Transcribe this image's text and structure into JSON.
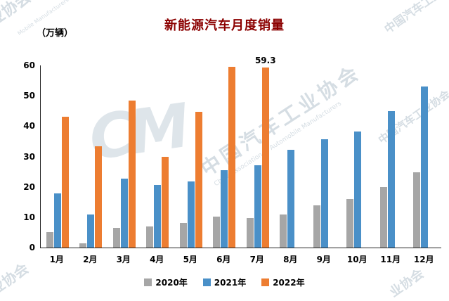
{
  "title": "新能源汽车月度销量",
  "unit_label": "（万辆）",
  "watermark": {
    "cn": "中国汽车工业协会",
    "en": "China Association of Automobile Manufacturers",
    "en_partial": "Mobile Manufacturers",
    "logo": "CM",
    "corner": "业协会"
  },
  "chart_data": {
    "type": "bar",
    "categories": [
      "1月",
      "2月",
      "3月",
      "4月",
      "5月",
      "6月",
      "7月",
      "8月",
      "9月",
      "10月",
      "11月",
      "12月"
    ],
    "series": [
      {
        "name": "2020年",
        "color": "#a6a6a6",
        "values": [
          5,
          1.5,
          6.5,
          7,
          8,
          10.2,
          9.8,
          10.9,
          13.8,
          16,
          20,
          24.8
        ]
      },
      {
        "name": "2021年",
        "color": "#4a90c8",
        "values": [
          17.9,
          11,
          22.6,
          20.6,
          21.7,
          25.6,
          27.1,
          32.1,
          35.7,
          38.3,
          45,
          53.1
        ]
      },
      {
        "name": "2022年",
        "color": "#ed7d31",
        "values": [
          43.1,
          33.4,
          48.4,
          29.9,
          44.7,
          59.6,
          59.3,
          null,
          null,
          null,
          null,
          null
        ]
      }
    ],
    "annotations": [
      {
        "series_index": 2,
        "category_index": 6,
        "text": "59.3"
      }
    ],
    "title": "新能源汽车月度销量",
    "xlabel": "",
    "ylabel": "（万辆）",
    "ylim": [
      0,
      60
    ],
    "yticks": [
      0,
      10,
      20,
      30,
      40,
      50,
      60
    ],
    "grid": false,
    "legend_position": "bottom"
  }
}
